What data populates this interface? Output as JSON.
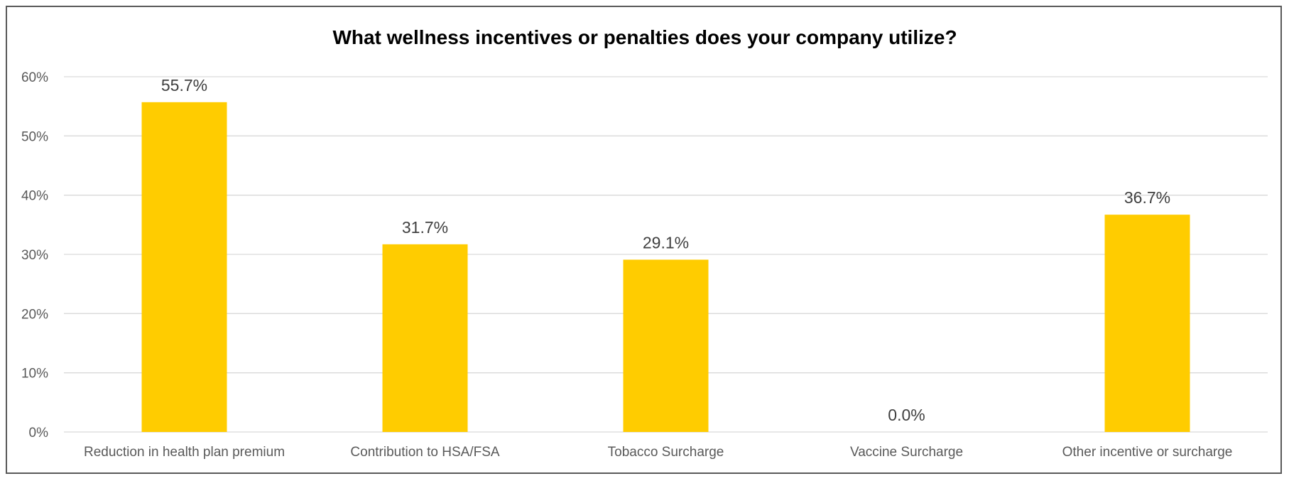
{
  "chart_data": {
    "type": "bar",
    "title": "What wellness incentives or penalties does your company utilize?",
    "xlabel": "",
    "ylabel": "",
    "categories": [
      "Reduction in health plan premium",
      "Contribution to HSA/FSA",
      "Tobacco Surcharge",
      "Vaccine Surcharge",
      "Other incentive or surcharge"
    ],
    "values": [
      55.7,
      31.7,
      29.1,
      0.0,
      36.7
    ],
    "value_labels": [
      "55.7%",
      "31.7%",
      "29.1%",
      "0.0%",
      "36.7%"
    ],
    "ylim": [
      0,
      60
    ],
    "yticks": [
      0,
      10,
      20,
      30,
      40,
      50,
      60
    ],
    "ytick_labels": [
      "0%",
      "10%",
      "20%",
      "30%",
      "40%",
      "50%",
      "60%"
    ],
    "grid": true,
    "legend": "none",
    "bar_color": "#FFCC00"
  }
}
